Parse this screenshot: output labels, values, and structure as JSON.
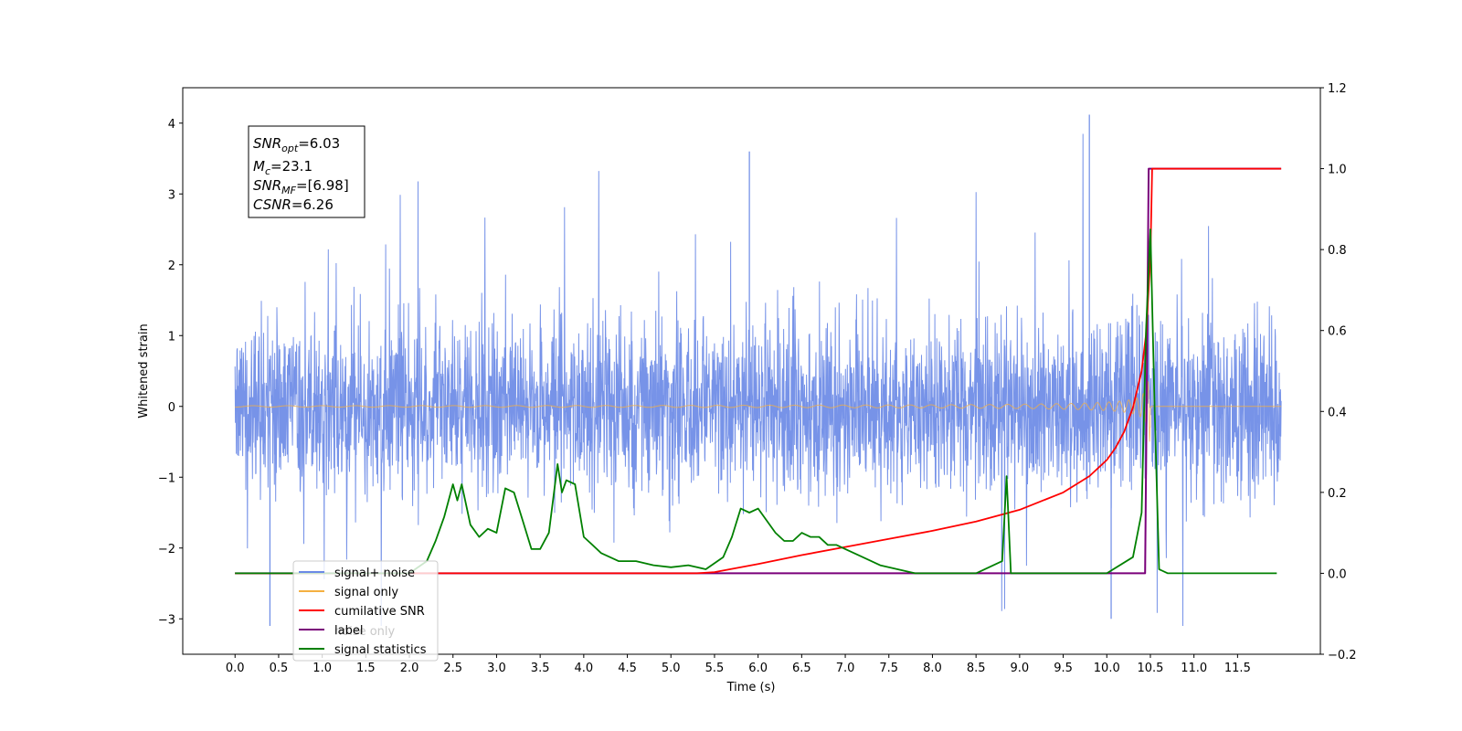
{
  "chart_data": {
    "type": "line",
    "xlabel": "Time (s)",
    "ylabel": "Whitened strain",
    "xlim": [
      -0.6,
      12.45
    ],
    "ylim": [
      -3.5,
      4.5
    ],
    "y2lim": [
      -0.2,
      1.2
    ],
    "grid": false,
    "legend_placement": "lower-left",
    "x_tick_labels": [
      "0.0",
      "0.5",
      "1.0",
      "1.5",
      "2.0",
      "2.5",
      "3.0",
      "3.5",
      "4.0",
      "4.5",
      "5.0",
      "5.5",
      "6.0",
      "6.5",
      "7.0",
      "7.5",
      "8.0",
      "8.5",
      "9.0",
      "9.5",
      "10.0",
      "10.5",
      "11.0",
      "11.5"
    ],
    "y_tick_labels": [
      "−3",
      "−2",
      "−1",
      "0",
      "1",
      "2",
      "3",
      "4"
    ],
    "y2_tick_labels": [
      "−0.2",
      "0.0",
      "0.2",
      "0.4",
      "0.6",
      "0.8",
      "1.0",
      "1.2"
    ],
    "info_box": [
      {
        "base": "SNR",
        "sub": "opt",
        "value": "=6.03"
      },
      {
        "base": "M",
        "sub": "c",
        "value": "=23.1"
      },
      {
        "base": "SNR",
        "sub": "MF",
        "value": "=[6.98]"
      },
      {
        "base": "CSNR",
        "sub": "",
        "value": "=6.26"
      }
    ],
    "series": [
      {
        "name": "signal+ noise",
        "axis": "left",
        "color": "#6b8ae6",
        "description_values": {
          "t_range": [
            0.0,
            12.0
          ],
          "typical_band": [
            -1.6,
            1.6
          ],
          "peak_max": 4.12,
          "peak_min": -3.1
        }
      },
      {
        "name": "signal only",
        "axis": "left",
        "color": "#f5b041",
        "chirp": {
          "t_start": 0.0,
          "t_merger": 10.5,
          "t_end": 12.0,
          "max_amplitude": 0.5
        }
      },
      {
        "name": "cumilative SNR",
        "axis": "right",
        "color": "#ff0000",
        "x": [
          0.0,
          5.3,
          5.5,
          6.0,
          6.5,
          7.0,
          7.5,
          8.0,
          8.5,
          9.0,
          9.5,
          9.8,
          10.0,
          10.1,
          10.2,
          10.3,
          10.4,
          10.45,
          10.5,
          10.52,
          12.0
        ],
        "y": [
          0.0,
          0.0,
          0.003,
          0.023,
          0.045,
          0.065,
          0.085,
          0.105,
          0.128,
          0.157,
          0.2,
          0.24,
          0.28,
          0.31,
          0.35,
          0.41,
          0.5,
          0.59,
          0.78,
          1.0,
          1.0
        ]
      },
      {
        "name": "label",
        "axis": "right",
        "color": "#7a007a",
        "x": [
          0.0,
          10.44,
          10.48,
          10.52,
          12.0
        ],
        "y": [
          0.0,
          0.0,
          1.0,
          1.0,
          1.0
        ]
      },
      {
        "name": "noise only",
        "axis": "right",
        "color": "#b0b0b0",
        "hidden_under_legend": true
      },
      {
        "name": "signal statistics",
        "axis": "right",
        "color": "#008000",
        "x": [
          0.0,
          2.0,
          2.2,
          2.3,
          2.4,
          2.5,
          2.55,
          2.6,
          2.7,
          2.8,
          2.9,
          3.0,
          3.1,
          3.2,
          3.3,
          3.4,
          3.5,
          3.6,
          3.7,
          3.75,
          3.8,
          3.9,
          4.0,
          4.1,
          4.2,
          4.4,
          4.6,
          4.8,
          5.0,
          5.2,
          5.4,
          5.6,
          5.7,
          5.8,
          5.9,
          6.0,
          6.1,
          6.2,
          6.3,
          6.4,
          6.5,
          6.6,
          6.7,
          6.8,
          6.9,
          7.0,
          7.2,
          7.4,
          7.6,
          7.8,
          8.0,
          8.5,
          8.8,
          8.85,
          8.9,
          9.0,
          9.5,
          10.0,
          10.3,
          10.4,
          10.45,
          10.5,
          10.55,
          10.6,
          10.7,
          11.0,
          11.5,
          11.95
        ],
        "y": [
          0.0,
          0.0,
          0.03,
          0.08,
          0.14,
          0.22,
          0.18,
          0.22,
          0.12,
          0.09,
          0.11,
          0.1,
          0.21,
          0.2,
          0.13,
          0.06,
          0.06,
          0.1,
          0.27,
          0.2,
          0.23,
          0.22,
          0.09,
          0.07,
          0.05,
          0.03,
          0.03,
          0.02,
          0.015,
          0.02,
          0.01,
          0.04,
          0.09,
          0.16,
          0.15,
          0.16,
          0.13,
          0.1,
          0.08,
          0.08,
          0.1,
          0.09,
          0.09,
          0.07,
          0.07,
          0.06,
          0.04,
          0.02,
          0.01,
          0.0,
          0.0,
          0.0,
          0.03,
          0.24,
          0.0,
          0.0,
          0.0,
          0.0,
          0.04,
          0.15,
          0.6,
          0.85,
          0.4,
          0.01,
          0.0,
          0.0,
          0.0,
          0.0
        ]
      }
    ],
    "legend_entries": [
      {
        "label": "signal+ noise",
        "color": "#6b8ae6"
      },
      {
        "label": "signal only",
        "color": "#f5b041"
      },
      {
        "label": "cumilative SNR",
        "color": "#ff0000"
      },
      {
        "label": "label",
        "color": "#7a007a"
      },
      {
        "label": "signal statistics",
        "color": "#008000"
      }
    ],
    "hidden_legend_text": "noise only"
  }
}
